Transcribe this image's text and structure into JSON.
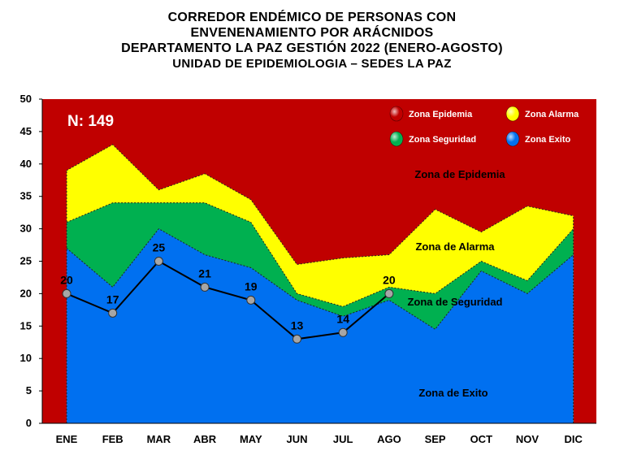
{
  "title_lines": [
    "CORREDOR ENDÉMICO DE PERSONAS CON",
    "ENVENENAMIENTO POR ARÁCNIDOS",
    "DEPARTAMENTO LA PAZ GESTIÓN 2022 (ENERO-AGOSTO)",
    "UNIDAD DE EPIDEMIOLOGIA – SEDES LA PAZ"
  ],
  "n_label": "N: 149",
  "colors": {
    "epidemia": "#C00000",
    "alarma": "#FFFF00",
    "seguridad": "#00B050",
    "exito": "#0070F0",
    "line": "#000000",
    "marker": "#A6A6A6"
  },
  "legend": [
    {
      "label": "Zona Epidemia",
      "color_key": "epidemia"
    },
    {
      "label": "Zona Alarma",
      "color_key": "alarma"
    },
    {
      "label": "Zona Seguridad",
      "color_key": "seguridad"
    },
    {
      "label": "Zona Exito",
      "color_key": "exito"
    }
  ],
  "zone_labels": [
    {
      "text": "Zona de Epidemia"
    },
    {
      "text": "Zona de Alarma"
    },
    {
      "text": "Zona de Seguridad"
    },
    {
      "text": "Zona de Exito"
    }
  ],
  "chart_data": {
    "type": "area",
    "categories": [
      "ENE",
      "FEB",
      "MAR",
      "ABR",
      "MAY",
      "JUN",
      "JUL",
      "AGO",
      "SEP",
      "OCT",
      "NOV",
      "DIC"
    ],
    "ylim": [
      0,
      50
    ],
    "yticks": [
      0,
      5,
      10,
      15,
      20,
      25,
      30,
      35,
      40,
      45,
      50
    ],
    "title": "CORREDOR ENDÉMICO DE PERSONAS CON ENVENENAMIENTO POR ARÁCNIDOS DEPARTAMENTO LA PAZ GESTIÓN 2022 (ENERO-AGOSTO) UNIDAD DE EPIDEMIOLOGIA – SEDES LA PAZ",
    "xlabel": "",
    "ylabel": "",
    "series": [
      {
        "name": "Zona Exito",
        "values": [
          27,
          21,
          30,
          26,
          24,
          19,
          16.5,
          19,
          14.5,
          23.5,
          20,
          26
        ]
      },
      {
        "name": "Zona Seguridad",
        "values": [
          31,
          34,
          34,
          34,
          31,
          20,
          18,
          21,
          20,
          25,
          22,
          30
        ]
      },
      {
        "name": "Zona Alarma",
        "values": [
          39,
          43,
          36,
          38.5,
          34.5,
          24.5,
          25.5,
          26,
          33,
          29.5,
          33.5,
          32
        ]
      },
      {
        "name": "Zona Epidemia",
        "values": [
          50,
          50,
          50,
          50,
          50,
          50,
          50,
          50,
          50,
          50,
          50,
          50
        ]
      }
    ],
    "observed": {
      "values": [
        20,
        17,
        25,
        21,
        19,
        13,
        14,
        20
      ],
      "labels": [
        "20",
        "17",
        "25",
        "21",
        "19",
        "13",
        "14",
        "20"
      ]
    }
  }
}
